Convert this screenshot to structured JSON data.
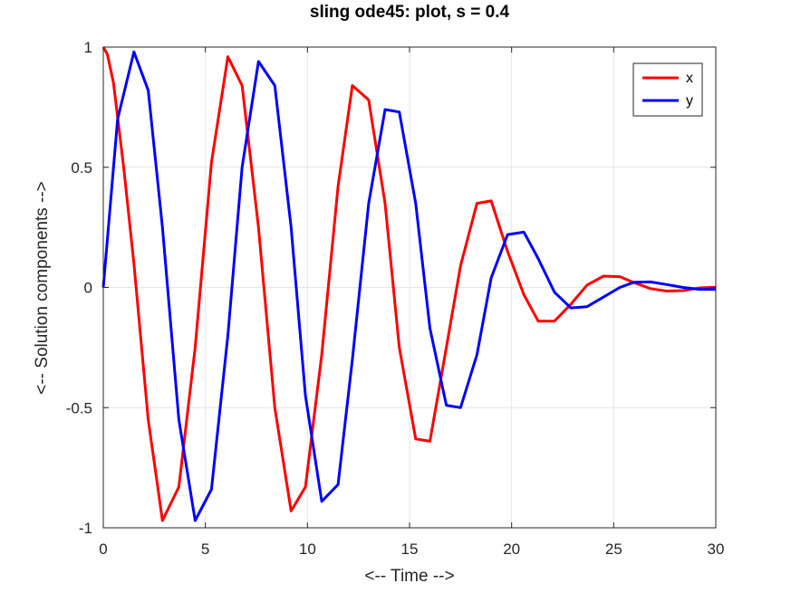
{
  "chart_data": {
    "type": "line",
    "title": "sling ode45: plot, s = 0.4",
    "xlabel": "<-- Time -->",
    "ylabel": "<-- Solution components -->",
    "xlim": [
      0,
      30
    ],
    "ylim": [
      -1,
      1
    ],
    "xticks": [
      0,
      5,
      10,
      15,
      20,
      25,
      30
    ],
    "yticks": [
      -1,
      -0.5,
      0,
      0.5,
      1
    ],
    "xtick_labels": [
      "0",
      "5",
      "10",
      "15",
      "20",
      "25",
      "30"
    ],
    "ytick_labels": [
      "-1",
      "-0.5",
      "0",
      "0.5",
      "1"
    ],
    "grid": true,
    "legend_position": "top-right",
    "series": [
      {
        "name": "x",
        "color": "#ff0000",
        "x": [
          0,
          0.2,
          0.5,
          1.0,
          1.5,
          2.2,
          2.9,
          3.7,
          4.5,
          5.3,
          6.1,
          6.8,
          7.6,
          8.4,
          9.2,
          9.9,
          10.7,
          11.5,
          12.2,
          13.0,
          13.8,
          14.5,
          15.3,
          16.0,
          16.8,
          17.5,
          18.3,
          19.0,
          19.8,
          20.6,
          21.3,
          22.1,
          22.9,
          23.7,
          24.5,
          25.3,
          26.0,
          26.8,
          27.6,
          28.4,
          29.2,
          30.0
        ],
        "y": [
          1.0,
          0.97,
          0.85,
          0.5,
          0.1,
          -0.55,
          -0.97,
          -0.83,
          -0.25,
          0.52,
          0.96,
          0.84,
          0.25,
          -0.5,
          -0.93,
          -0.83,
          -0.28,
          0.42,
          0.84,
          0.78,
          0.35,
          -0.25,
          -0.63,
          -0.64,
          -0.25,
          0.09,
          0.35,
          0.36,
          0.15,
          -0.03,
          -0.14,
          -0.14,
          -0.07,
          0.01,
          0.047,
          0.045,
          0.02,
          -0.005,
          -0.015,
          -0.013,
          -0.002,
          0.001
        ]
      },
      {
        "name": "y",
        "color": "#0000ff",
        "x": [
          0,
          0.7,
          1.5,
          2.2,
          2.9,
          3.7,
          4.5,
          5.3,
          6.1,
          6.8,
          7.6,
          8.4,
          9.2,
          9.9,
          10.7,
          11.5,
          12.2,
          13.0,
          13.8,
          14.5,
          15.3,
          16.0,
          16.8,
          17.5,
          18.3,
          19.0,
          19.8,
          20.6,
          21.3,
          22.1,
          22.9,
          23.7,
          24.5,
          25.3,
          26.0,
          26.8,
          27.6,
          28.4,
          29.2,
          30.0
        ],
        "y": [
          0.0,
          0.7,
          0.98,
          0.82,
          0.25,
          -0.55,
          -0.97,
          -0.84,
          -0.2,
          0.5,
          0.94,
          0.84,
          0.25,
          -0.45,
          -0.89,
          -0.82,
          -0.3,
          0.35,
          0.74,
          0.73,
          0.35,
          -0.17,
          -0.49,
          -0.5,
          -0.28,
          0.04,
          0.22,
          0.23,
          0.12,
          -0.02,
          -0.085,
          -0.08,
          -0.04,
          0.0,
          0.022,
          0.023,
          0.012,
          0.0,
          -0.008,
          -0.008
        ]
      }
    ]
  }
}
